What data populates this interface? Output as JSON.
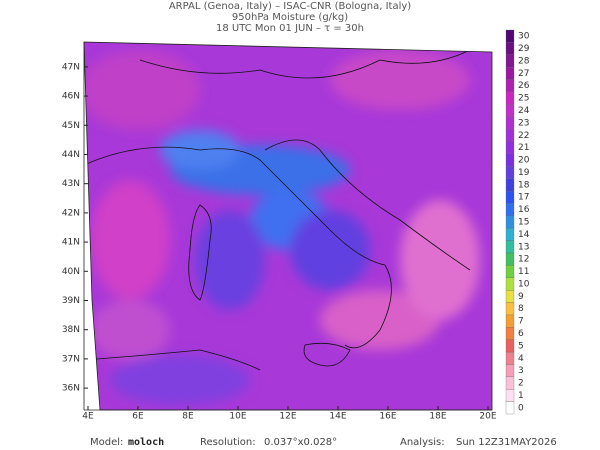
{
  "header": {
    "line1": "ARPAL (Genoa, Italy)  –  ISAC-CNR (Bologna, Italy)",
    "line2": "950hPa Moisture (g/kg)",
    "line3": "18 UTC Mon 01 JUN  –  τ = 30h"
  },
  "map": {
    "xlim": [
      3.84,
      20.16
    ],
    "ylim": [
      35.25,
      47.92
    ],
    "xticks": [
      {
        "value": 4,
        "label": "4E"
      },
      {
        "value": 6,
        "label": "6E"
      },
      {
        "value": 8,
        "label": "8E"
      },
      {
        "value": 10,
        "label": "10E"
      },
      {
        "value": 12,
        "label": "12E"
      },
      {
        "value": 14,
        "label": "14E"
      },
      {
        "value": 16,
        "label": "16E"
      },
      {
        "value": 18,
        "label": "18E"
      },
      {
        "value": 20,
        "label": "20E"
      }
    ],
    "yticks": [
      {
        "value": 36,
        "label": "36N"
      },
      {
        "value": 37,
        "label": "37N"
      },
      {
        "value": 38,
        "label": "38N"
      },
      {
        "value": 39,
        "label": "39N"
      },
      {
        "value": 40,
        "label": "40N"
      },
      {
        "value": 41,
        "label": "41N"
      },
      {
        "value": 42,
        "label": "42N"
      },
      {
        "value": 43,
        "label": "43N"
      },
      {
        "value": 44,
        "label": "44N"
      },
      {
        "value": 45,
        "label": "45N"
      },
      {
        "value": 46,
        "label": "46N"
      },
      {
        "value": 47,
        "label": "47N"
      }
    ]
  },
  "colorbar": {
    "ticks": [
      0,
      1,
      2,
      3,
      4,
      5,
      6,
      7,
      8,
      9,
      10,
      11,
      12,
      13,
      14,
      15,
      16,
      17,
      18,
      19,
      20,
      21,
      22,
      23,
      24,
      25,
      26,
      27,
      28,
      29,
      30
    ],
    "colors": [
      "#ffffff",
      "#fde0ef",
      "#f9c0d8",
      "#f4a0b8",
      "#ee8090",
      "#e86060",
      "#f08040",
      "#f4a030",
      "#f8c040",
      "#e8e040",
      "#b0e040",
      "#70d040",
      "#40c060",
      "#30c0a0",
      "#30b0d0",
      "#3090e0",
      "#3070f0",
      "#3050f0",
      "#4040e0",
      "#6040e0",
      "#7a30e0",
      "#9030e0",
      "#a030d8",
      "#b030d0",
      "#c030c8",
      "#c828c0",
      "#b020b0",
      "#9818a0",
      "#801890",
      "#681080",
      "#500870"
    ]
  },
  "footer": {
    "model_label": "Model:",
    "model": "moloch",
    "resolution_label": "Resolution:",
    "resolution": "0.037°x0.028°",
    "analysis_label": "Analysis:",
    "analysis": "Sun 12Z31MAY2026"
  }
}
